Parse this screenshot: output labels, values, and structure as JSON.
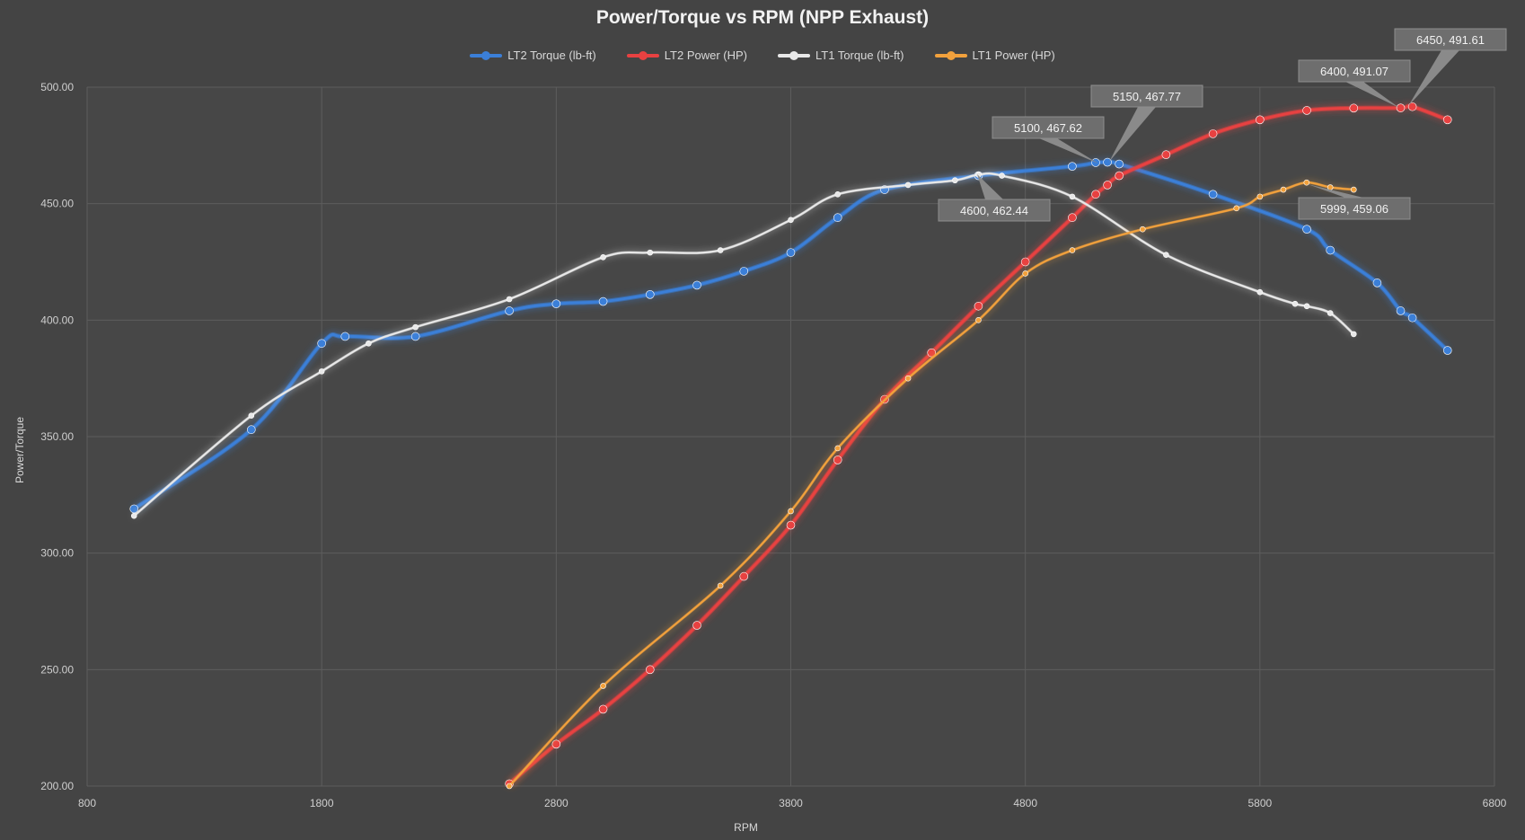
{
  "chart_data": {
    "type": "line",
    "title": "Power/Torque vs RPM (NPP Exhaust)",
    "xlabel": "RPM",
    "ylabel": "Power/Torque",
    "xlim": [
      800,
      6800
    ],
    "ylim": [
      200,
      500
    ],
    "x_ticks": [
      "800",
      "1800",
      "2800",
      "3800",
      "4800",
      "5800",
      "6800"
    ],
    "y_ticks": [
      "200.00",
      "250.00",
      "300.00",
      "350.00",
      "400.00",
      "450.00",
      "500.00"
    ],
    "grid": true,
    "legend_position": "top",
    "series": [
      {
        "name": "LT2 Torque (lb-ft)",
        "color": "#3b7fd8",
        "points": [
          [
            1000,
            319
          ],
          [
            1500,
            353
          ],
          [
            1800,
            390
          ],
          [
            1900,
            393
          ],
          [
            2200,
            393
          ],
          [
            2600,
            404
          ],
          [
            2800,
            407
          ],
          [
            3000,
            408
          ],
          [
            3200,
            411
          ],
          [
            3400,
            415
          ],
          [
            3600,
            421
          ],
          [
            3800,
            429
          ],
          [
            4000,
            444
          ],
          [
            4200,
            456
          ],
          [
            4600,
            462
          ],
          [
            5000,
            466
          ],
          [
            5100,
            467.62
          ],
          [
            5150,
            467.77
          ],
          [
            5200,
            467
          ],
          [
            5600,
            454
          ],
          [
            6000,
            439
          ],
          [
            6100,
            430
          ],
          [
            6300,
            416
          ],
          [
            6400,
            404
          ],
          [
            6450,
            401
          ],
          [
            6600,
            387
          ]
        ]
      },
      {
        "name": "LT2 Power (HP)",
        "color": "#e84141",
        "points": [
          [
            2600,
            201
          ],
          [
            2800,
            218
          ],
          [
            3000,
            233
          ],
          [
            3200,
            250
          ],
          [
            3400,
            269
          ],
          [
            3600,
            290
          ],
          [
            3800,
            312
          ],
          [
            4000,
            340
          ],
          [
            4200,
            366
          ],
          [
            4400,
            386
          ],
          [
            4600,
            406
          ],
          [
            4800,
            425
          ],
          [
            5000,
            444
          ],
          [
            5100,
            454
          ],
          [
            5150,
            458
          ],
          [
            5200,
            462
          ],
          [
            5400,
            471
          ],
          [
            5600,
            480
          ],
          [
            5800,
            486
          ],
          [
            6000,
            490
          ],
          [
            6200,
            491
          ],
          [
            6400,
            491.07
          ],
          [
            6450,
            491.61
          ],
          [
            6600,
            486
          ]
        ]
      },
      {
        "name": "LT1 Torque (lb-ft)",
        "color": "#e8e8e8",
        "points": [
          [
            1000,
            316
          ],
          [
            1500,
            359
          ],
          [
            1800,
            378
          ],
          [
            2000,
            390
          ],
          [
            2200,
            397
          ],
          [
            2600,
            409
          ],
          [
            3000,
            427
          ],
          [
            3200,
            429
          ],
          [
            3500,
            430
          ],
          [
            3800,
            443
          ],
          [
            4000,
            454
          ],
          [
            4300,
            458
          ],
          [
            4500,
            460
          ],
          [
            4600,
            462.44
          ],
          [
            4700,
            462
          ],
          [
            5000,
            453
          ],
          [
            5400,
            428
          ],
          [
            5800,
            412
          ],
          [
            5950,
            407
          ],
          [
            6000,
            406
          ],
          [
            6100,
            403
          ],
          [
            6200,
            394
          ]
        ]
      },
      {
        "name": "LT1 Power (HP)",
        "color": "#f2a13c",
        "points": [
          [
            2600,
            200
          ],
          [
            3000,
            243
          ],
          [
            3500,
            286
          ],
          [
            3800,
            318
          ],
          [
            4000,
            345
          ],
          [
            4300,
            375
          ],
          [
            4600,
            400
          ],
          [
            4800,
            420
          ],
          [
            5000,
            430
          ],
          [
            5300,
            439
          ],
          [
            5700,
            448
          ],
          [
            5800,
            453
          ],
          [
            5900,
            456
          ],
          [
            5999,
            459.06
          ],
          [
            6100,
            457
          ],
          [
            6200,
            456
          ]
        ]
      }
    ],
    "annotations": [
      {
        "text": "4600, 462.44"
      },
      {
        "text": "5100, 467.62"
      },
      {
        "text": "5150, 467.77"
      },
      {
        "text": "5999, 459.06"
      },
      {
        "text": "6400, 491.07"
      },
      {
        "text": "6450, 491.61"
      }
    ]
  }
}
